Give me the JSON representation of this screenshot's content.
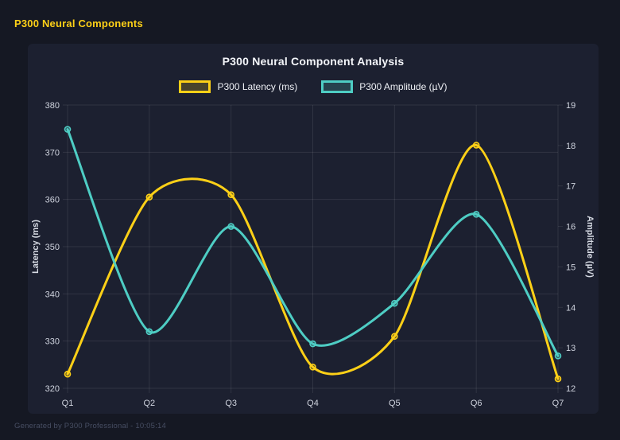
{
  "page": {
    "title": "P300 Neural Components",
    "footer": "Generated by P300 Professional - 10:05:14",
    "colors": {
      "page_bg": "#151823",
      "panel_bg": "#1c2030",
      "accent_yellow": "#fdd017",
      "accent_teal": "#4ecdc4",
      "grid": "rgba(255,255,255,0.09)",
      "tick_text": "#cfd3de",
      "axis_title_text": "#d6dae3",
      "title_text": "#f3f5f9"
    }
  },
  "chart_data": {
    "type": "line",
    "title": "P300 Neural Component Analysis",
    "categories": [
      "Q1",
      "Q2",
      "Q3",
      "Q4",
      "Q5",
      "Q6",
      "Q7"
    ],
    "series": [
      {
        "name": "P300 Latency (ms)",
        "axis": "left",
        "color": "#fdd017",
        "values": [
          323,
          360.5,
          361,
          324.5,
          331,
          371.5,
          322
        ]
      },
      {
        "name": "P300 Amplitude (µV)",
        "axis": "right",
        "color": "#4ecdc4",
        "values": [
          18.4,
          13.4,
          16.0,
          13.1,
          14.1,
          16.3,
          12.8
        ]
      }
    ],
    "left_axis": {
      "label": "Latency (ms)",
      "min": 320,
      "max": 380,
      "step": 10,
      "ticks": [
        320,
        330,
        340,
        350,
        360,
        370,
        380
      ]
    },
    "right_axis": {
      "label": "Amplitude (µV)",
      "min": 12,
      "max": 19,
      "step": 1,
      "ticks": [
        12,
        13,
        14,
        15,
        16,
        17,
        18,
        19
      ]
    },
    "grid": "horizontal gridlines from left axis, vertical gridline per category",
    "legend_position": "top",
    "line_style": "smooth cubic spline with slight overshoot, point markers"
  }
}
